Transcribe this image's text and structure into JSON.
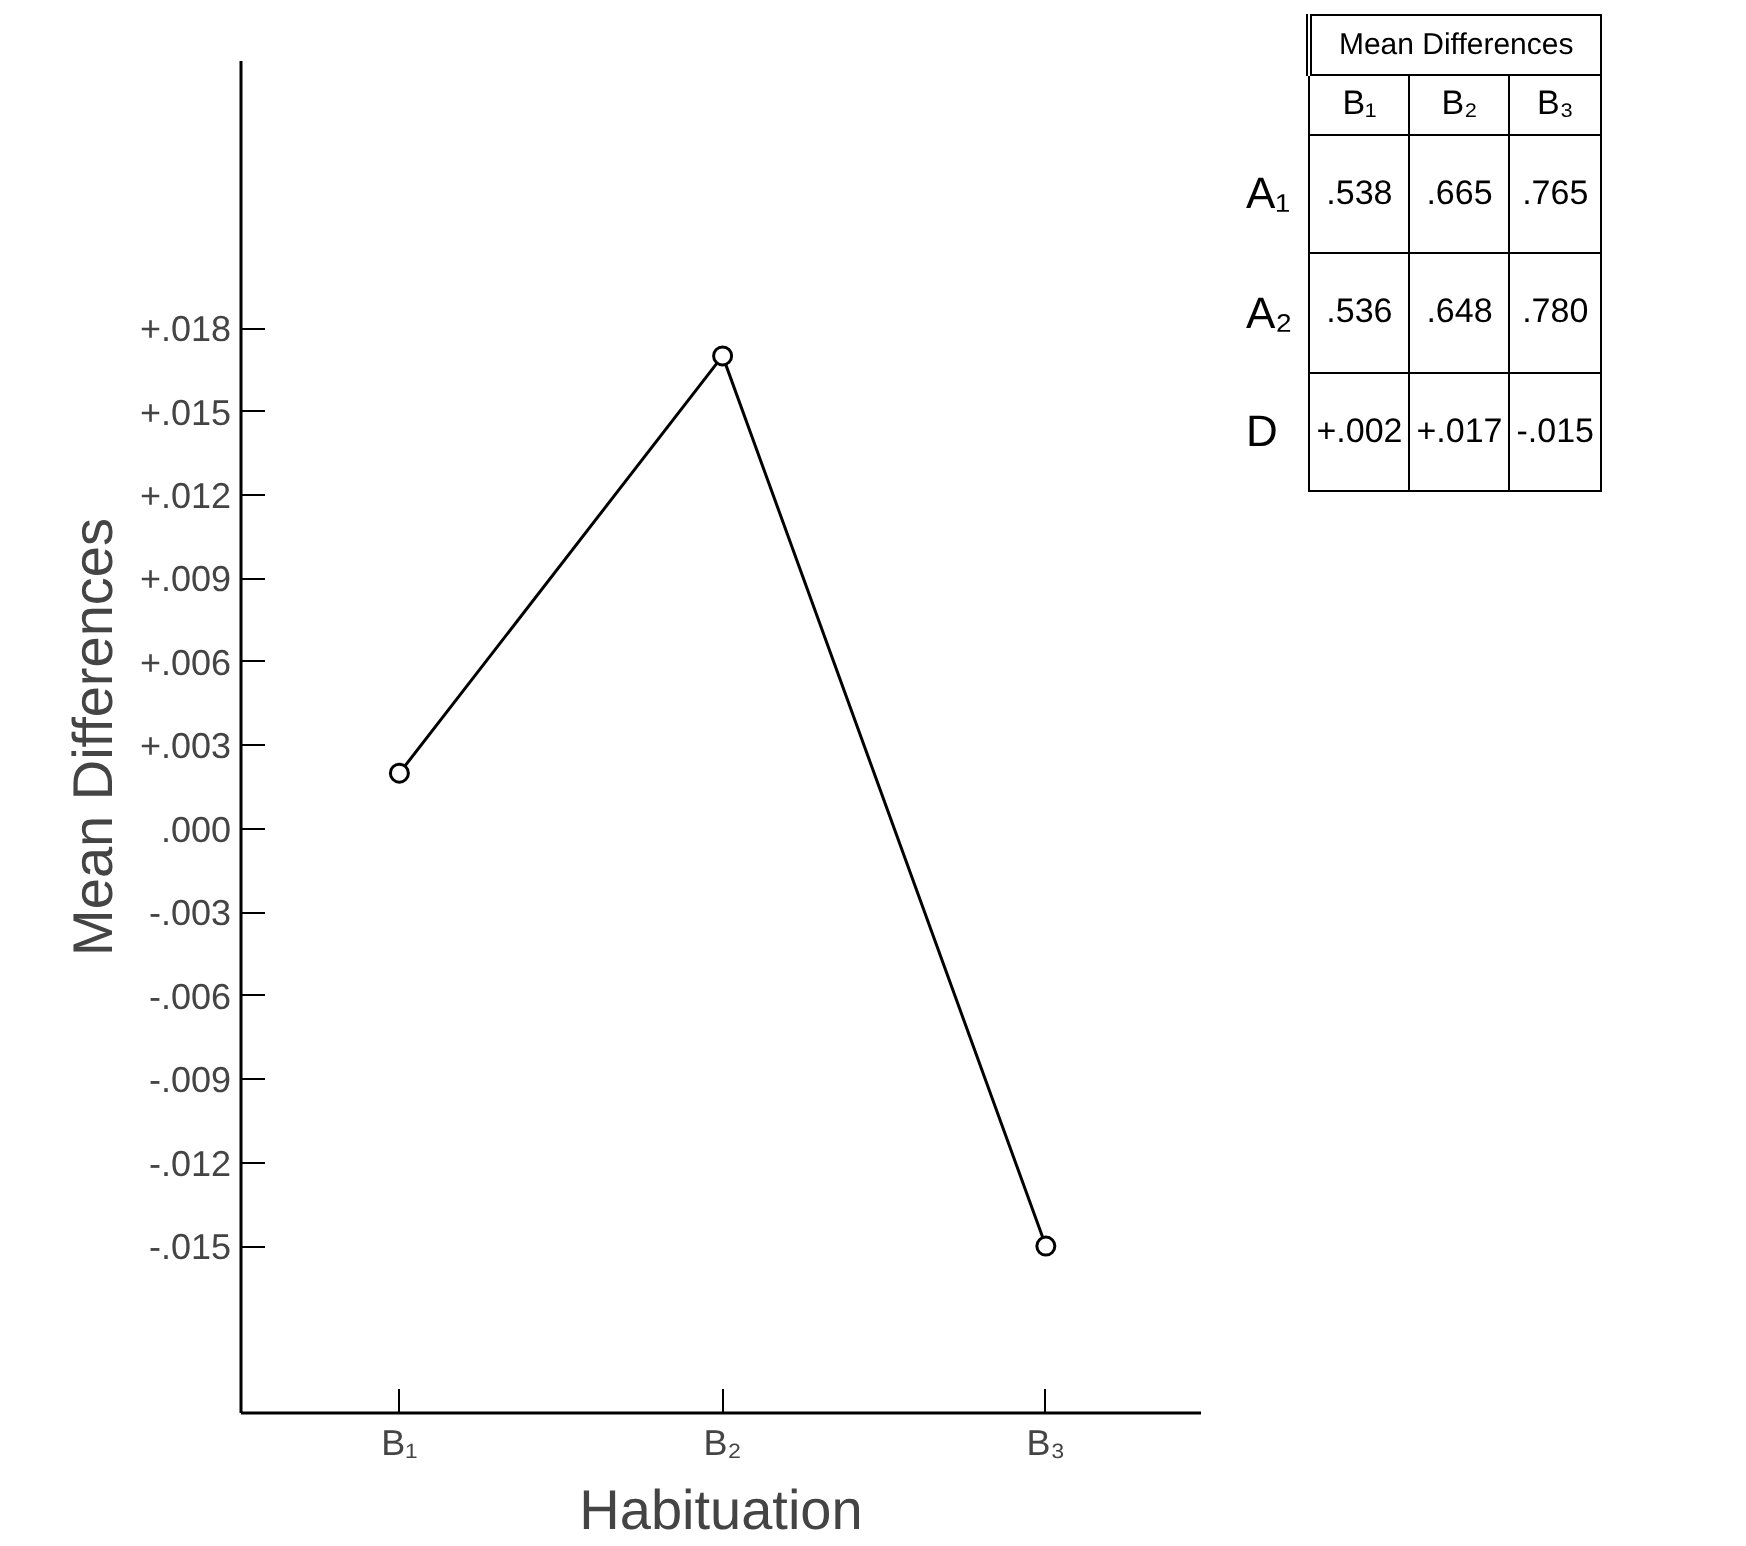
{
  "chart_data": {
    "type": "line",
    "xlabel": "Habituation",
    "ylabel": "Mean Differences",
    "categories": [
      "B₁",
      "B₂",
      "B₃"
    ],
    "series": [
      {
        "color": "#000000",
        "values": [
          0.002,
          0.017,
          -0.015
        ]
      }
    ],
    "ylim": [
      -0.021,
      0.0276
    ],
    "yticks": [
      {
        "value": 0.018,
        "label": "+.018"
      },
      {
        "value": 0.015,
        "label": "+.015"
      },
      {
        "value": 0.012,
        "label": "+.012"
      },
      {
        "value": 0.009,
        "label": "+.009"
      },
      {
        "value": 0.006,
        "label": "+.006"
      },
      {
        "value": 0.003,
        "label": "+.003"
      },
      {
        "value": 0.0,
        "label": ".000"
      },
      {
        "value": -0.003,
        "label": "-.003"
      },
      {
        "value": -0.006,
        "label": "-.006"
      },
      {
        "value": -0.009,
        "label": "-.009"
      },
      {
        "value": -0.012,
        "label": "-.012"
      },
      {
        "value": -0.015,
        "label": "-.015"
      }
    ],
    "marker": "circle",
    "line_style": "solid",
    "grid": false,
    "annotations": [
      "Mean Differences",
      "B₁",
      "B₂",
      "B₃",
      "A₁",
      ".538",
      ".665",
      ".765",
      "A₂",
      ".536",
      ".648",
      ".780",
      "D",
      "+.002",
      "+.017",
      "-.015"
    ]
  }
}
